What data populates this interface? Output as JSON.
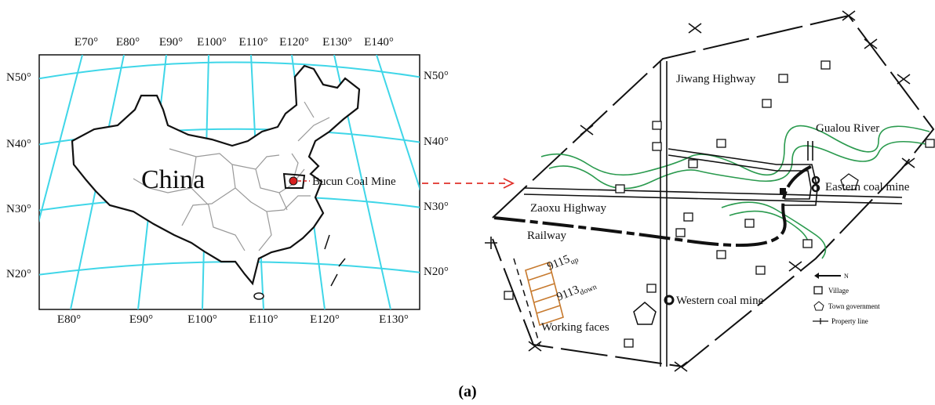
{
  "left_map": {
    "top_labels": [
      "E70°",
      "E80°",
      "E90°",
      "E100°",
      "E110°",
      "E120°",
      "E130°",
      "E140°"
    ],
    "bottom_labels": [
      "E80°",
      "E90°",
      "E100°",
      "E110°",
      "E120°",
      "E130°"
    ],
    "left_labels": [
      "N50°",
      "N40°",
      "N30°",
      "N20°"
    ],
    "right_labels": [
      "N50°",
      "N40°",
      "N30°",
      "N20°"
    ],
    "country_label": "China",
    "mine_label": "Bucun Coal Mine"
  },
  "right_map": {
    "jiwang": "Jiwang Highway",
    "river": "Gualou River",
    "eastern_mine": "Eastern coal mine",
    "zaoxu": "Zaoxu Highway",
    "railway": "Railway",
    "face_upper": {
      "number": "9115",
      "sub": "up"
    },
    "face_lower": {
      "number": "9113",
      "sub": "down"
    },
    "western_mine": "Western coal mine",
    "working_faces": "Working faces",
    "legend": {
      "north": "N",
      "village": "Village",
      "town": "Town government",
      "property": "Property line"
    }
  },
  "caption": "(a)"
}
